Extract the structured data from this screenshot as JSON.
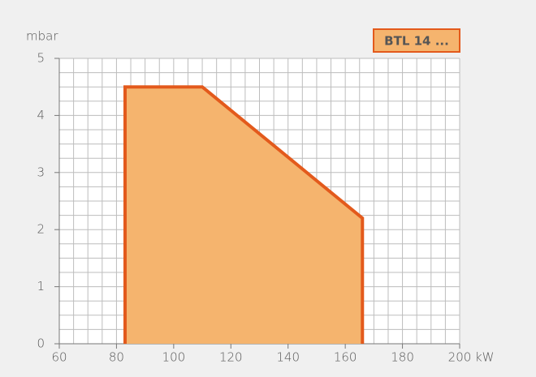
{
  "chart_data": {
    "type": "area",
    "ylabel": "mbar",
    "xlabel": "kW",
    "x": [
      83,
      83,
      110,
      166,
      166
    ],
    "series": [
      {
        "name": "BTL 14 ...",
        "color": "#e35a1c",
        "fill": "#f5b46e",
        "values": [
          0,
          4.5,
          4.5,
          2.2,
          0
        ]
      }
    ],
    "xlim": [
      60,
      200
    ],
    "xticks": [
      60,
      80,
      100,
      120,
      140,
      160,
      180,
      200
    ],
    "ylim": [
      0,
      5
    ],
    "yticks": [
      0,
      1,
      2,
      3,
      4,
      5
    ],
    "grid": true,
    "xgrid_step": 5,
    "ygrid_step": 0.25,
    "legend": "top-right"
  }
}
